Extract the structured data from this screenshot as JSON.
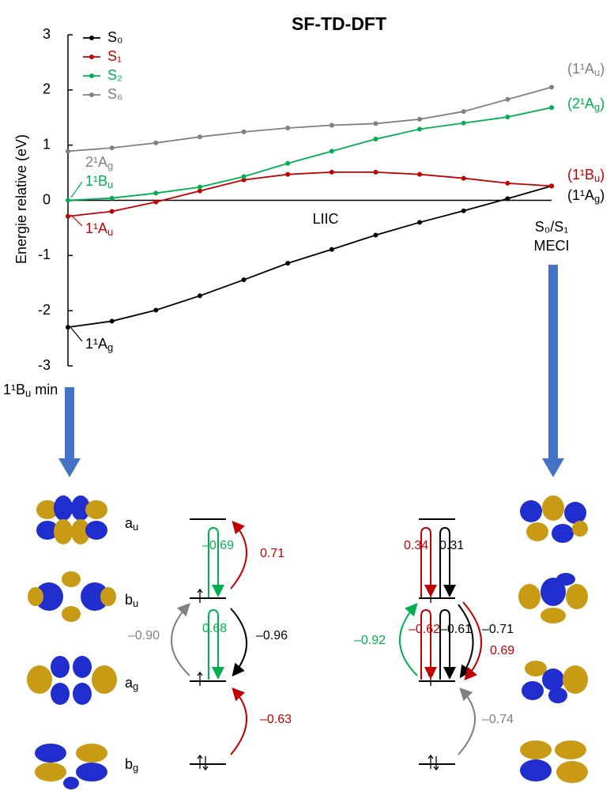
{
  "chart_data": {
    "type": "line",
    "title": "SF-TD-DFT",
    "y_label": "Energie relative (eV)",
    "x_label": "LIIC",
    "start_label": {
      "pre": "1¹B",
      "sub": "u",
      "post": " min"
    },
    "end_label": [
      "S₀/S₁",
      "MECI"
    ],
    "ylim": [
      -3,
      3
    ],
    "yticks": [
      -3,
      -2,
      -1,
      0,
      1,
      2,
      3
    ],
    "legend": "upper left",
    "series": [
      {
        "name": "S₀",
        "color": "#000000",
        "values": [
          -2.3,
          -2.19,
          -1.99,
          -1.73,
          -1.44,
          -1.14,
          -0.89,
          -0.63,
          -0.4,
          -0.19,
          0.03,
          0.26
        ]
      },
      {
        "name": "S₁",
        "color": "#c00000",
        "values": [
          -0.29,
          -0.2,
          -0.03,
          0.17,
          0.37,
          0.47,
          0.51,
          0.51,
          0.47,
          0.4,
          0.31,
          0.26
        ]
      },
      {
        "name": "S₂",
        "color": "#00b050",
        "values": [
          0,
          0.04,
          0.13,
          0.24,
          0.43,
          0.67,
          0.89,
          1.11,
          1.29,
          1.4,
          1.51,
          1.68
        ]
      },
      {
        "name": "S₆",
        "color": "#808080",
        "values": [
          0.89,
          0.95,
          1.04,
          1.15,
          1.24,
          1.31,
          1.36,
          1.39,
          1.47,
          1.61,
          1.83,
          2.05
        ]
      }
    ],
    "annotations": [
      {
        "pre": "(1¹A",
        "sub": "u",
        "post": ")",
        "color": "#808080"
      },
      {
        "pre": "(2¹A",
        "sub": "g",
        "post": ")",
        "color": "#00b050"
      },
      {
        "pre": "(1¹B",
        "sub": "u",
        "post": ")",
        "color": "#c00000"
      },
      {
        "pre": "(1¹A",
        "sub": "g",
        "post": ")",
        "color": "#000000"
      },
      {
        "pre": "2¹A",
        "sub": "g",
        "color": "#808080"
      },
      {
        "pre": "1¹B",
        "sub": "u",
        "color": "#00b050"
      },
      {
        "pre": "1¹A",
        "sub": "u",
        "color": "#c00000"
      },
      {
        "pre": "1¹A",
        "sub": "g",
        "color": "#000000"
      }
    ]
  },
  "diagram": {
    "orbitals": [
      {
        "pre": "a",
        "sub": "u"
      },
      {
        "pre": "b",
        "sub": "u"
      },
      {
        "pre": "a",
        "sub": "g"
      },
      {
        "pre": "b",
        "sub": "g"
      }
    ],
    "left_coefficients": [
      {
        "text": "–0.69",
        "color": "#00b050"
      },
      {
        "text": "0.71",
        "color": "#c00000"
      },
      {
        "text": "0.68",
        "color": "#00b050"
      },
      {
        "text": "–0.96",
        "color": "#000000"
      },
      {
        "text": "–0.90",
        "color": "#808080"
      },
      {
        "text": "–0.63",
        "color": "#c00000"
      }
    ],
    "right_coefficients": [
      {
        "text": "0.34",
        "color": "#c00000"
      },
      {
        "text": "0.31",
        "color": "#000000"
      },
      {
        "text": "–0.92",
        "color": "#00b050"
      },
      {
        "text": "–0.62",
        "color": "#c00000"
      },
      {
        "text": "–0.61",
        "color": "#000000"
      },
      {
        "text": "–0.71",
        "color": "#000000"
      },
      {
        "text": "0.69",
        "color": "#c00000"
      },
      {
        "text": "–0.74",
        "color": "#808080"
      }
    ]
  }
}
